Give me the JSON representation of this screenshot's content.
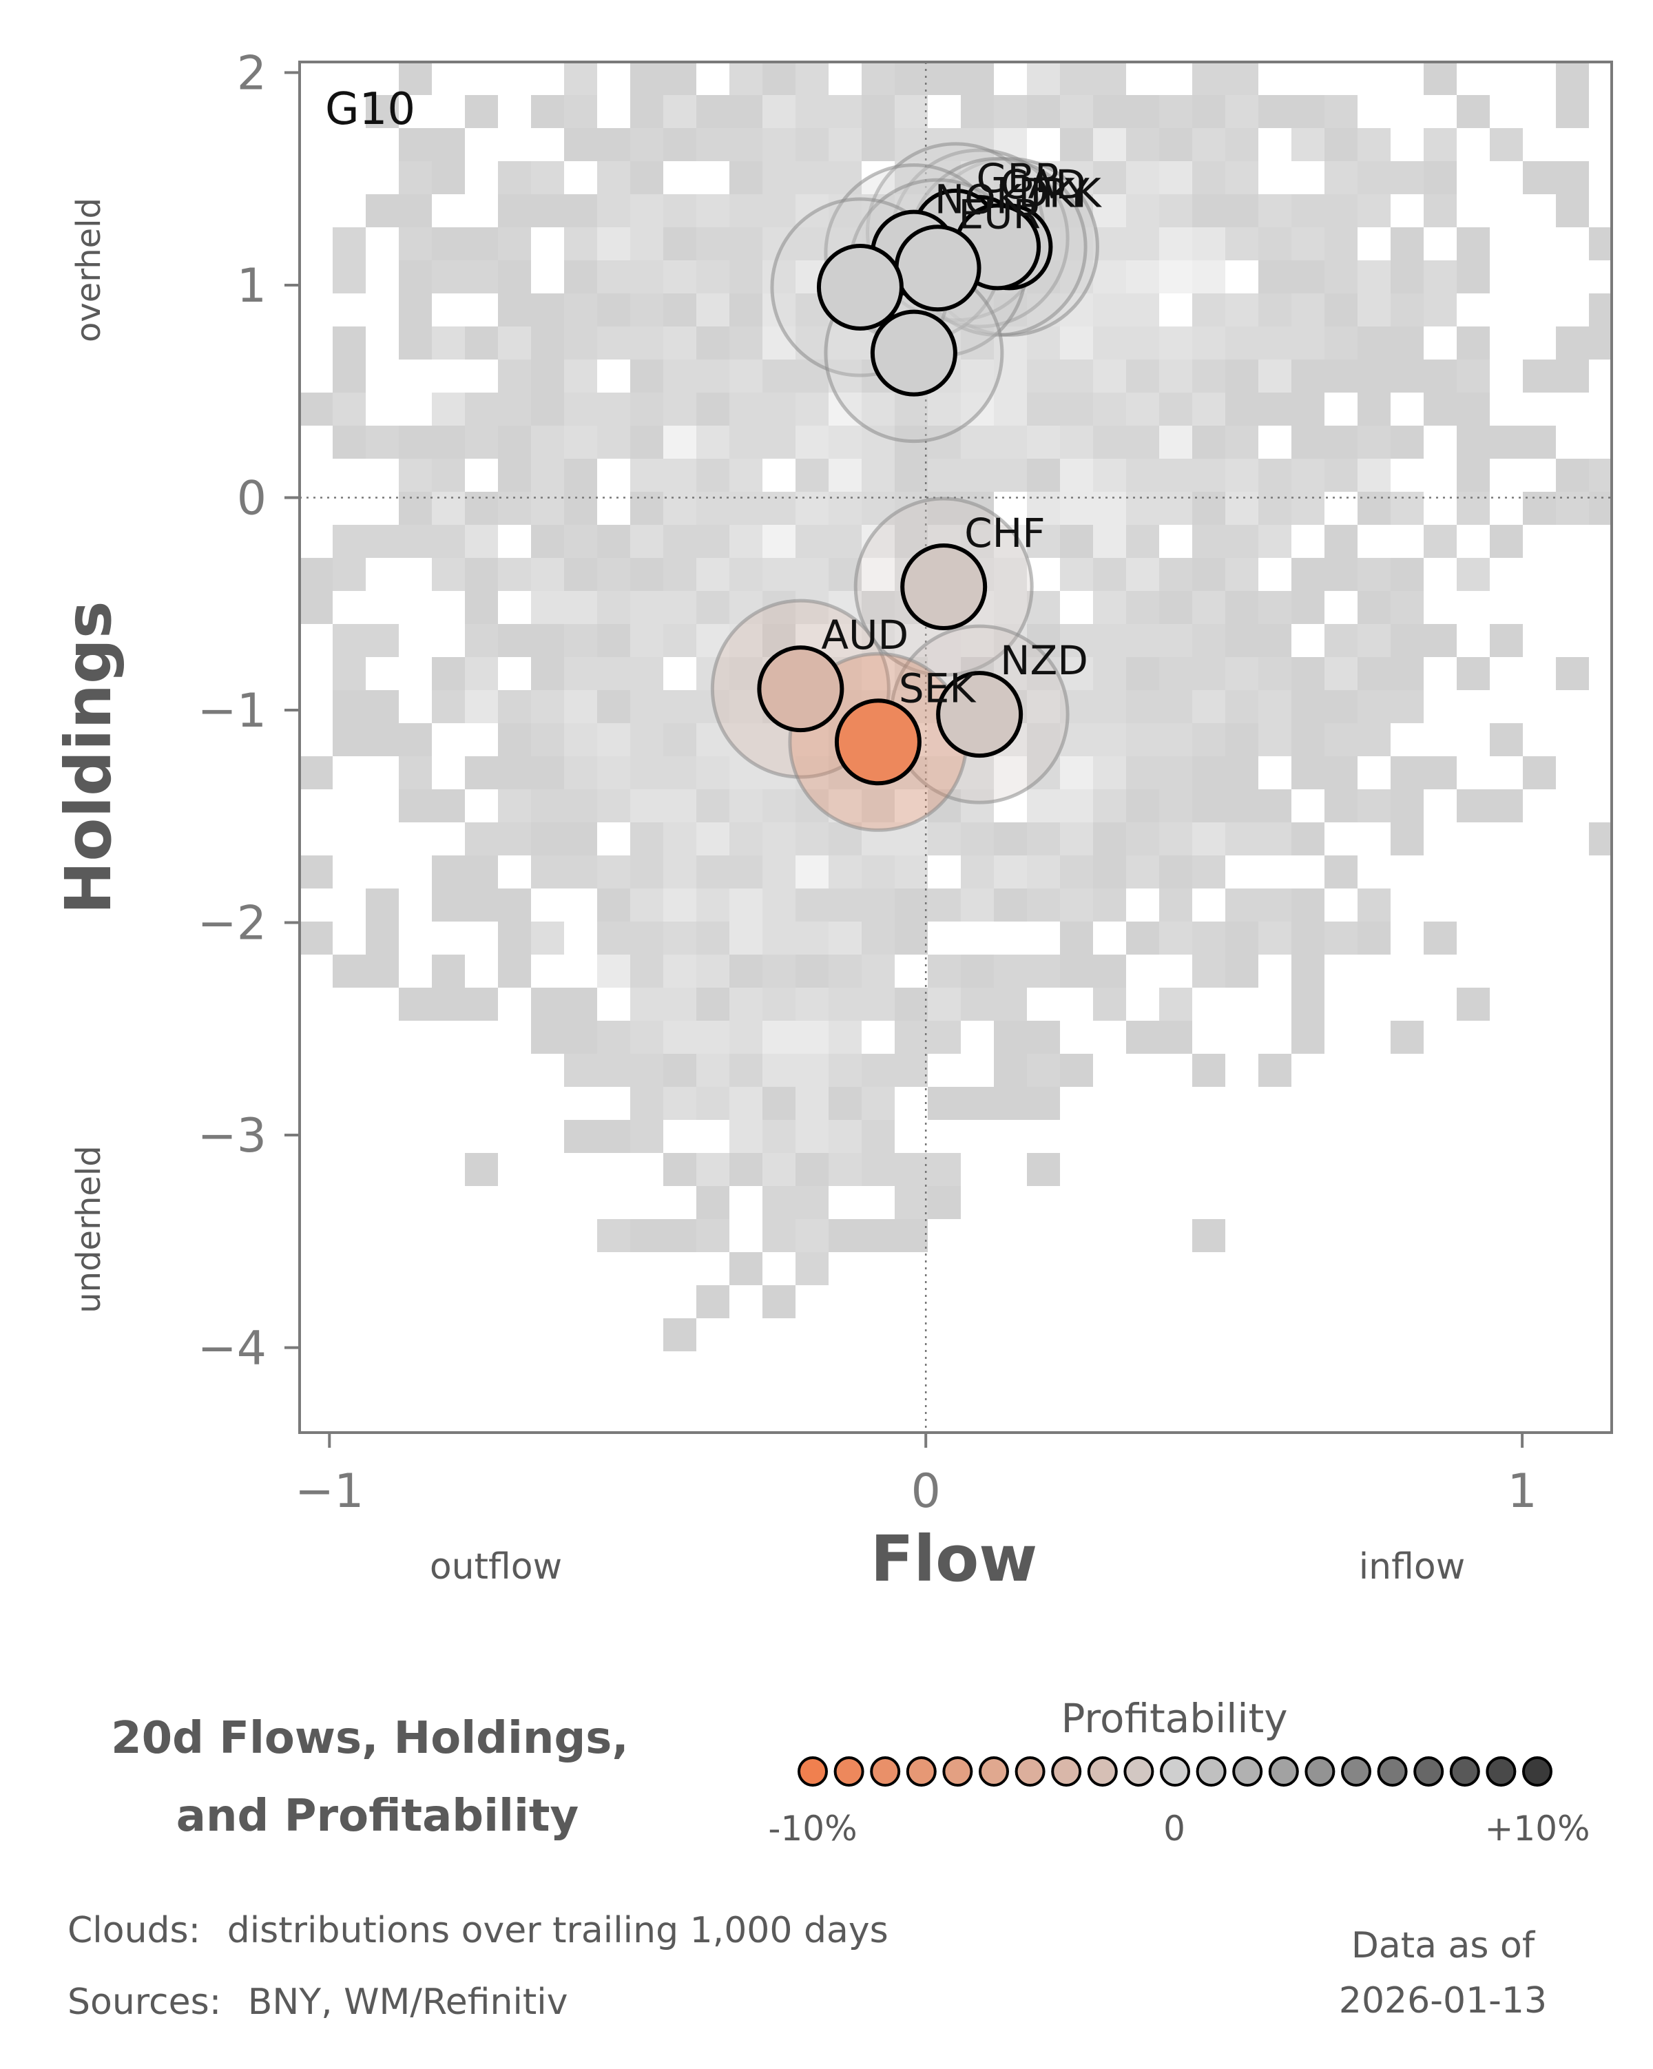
{
  "chart_data": {
    "type": "scatter",
    "panel_label": "G10",
    "xlabel": "Flow",
    "ylabel": "Holdings",
    "xlim": [
      -1.05,
      1.15
    ],
    "ylim": [
      -4.4,
      2.05
    ],
    "x_ticks": [
      -1,
      0,
      1
    ],
    "y_ticks": [
      2,
      1,
      0,
      -1,
      -2,
      -3,
      -4
    ],
    "x_tick_labels": [
      "−1",
      "0",
      "1"
    ],
    "y_tick_labels": [
      "2",
      "1",
      "0",
      "−1",
      "−2",
      "−3",
      "−4"
    ],
    "x_annotations": {
      "left": "outflow",
      "right": "inflow"
    },
    "y_annotations": {
      "top": "overheld",
      "bottom": "underheld"
    },
    "reference_lines": {
      "x": 0,
      "y": 0,
      "style": "dotted"
    },
    "grid": false,
    "series": [
      {
        "label": "JPY",
        "x": 0.14,
        "y": 1.18,
        "profitability": 0.0
      },
      {
        "label": "CAD",
        "x": 0.09,
        "y": 1.22,
        "profitability": 0.0
      },
      {
        "label": "GBP",
        "x": 0.05,
        "y": 1.25,
        "profitability": 0.0
      },
      {
        "label": "DKK",
        "x": 0.12,
        "y": 1.18,
        "profitability": 0.0
      },
      {
        "label": "NOK",
        "x": -0.02,
        "y": 1.15,
        "profitability": 0.0
      },
      {
        "label": "EUR",
        "x": 0.02,
        "y": 1.08,
        "profitability": 0.0
      },
      {
        "label": "",
        "x": -0.11,
        "y": 0.99,
        "profitability": 0.0
      },
      {
        "label": "",
        "x": -0.02,
        "y": 0.68,
        "profitability": 0.0
      },
      {
        "label": "CHF",
        "x": 0.03,
        "y": -0.42,
        "profitability": -1.0
      },
      {
        "label": "AUD",
        "x": -0.21,
        "y": -0.9,
        "profitability": -3.0
      },
      {
        "label": "NZD",
        "x": 0.09,
        "y": -1.02,
        "profitability": -1.0
      },
      {
        "label": "SEK",
        "x": -0.08,
        "y": -1.15,
        "profitability": -9.0
      }
    ],
    "cloud": {
      "description_label": "Clouds:",
      "description_text": "distributions over trailing 1,000 days"
    },
    "legend": {
      "title": "Profitability",
      "min_label": "-10%",
      "mid_label": "0",
      "max_label": "+10%",
      "min": -10,
      "max": 10,
      "steps": 21,
      "placement": "bottom-right"
    }
  },
  "title": "20d Flows, Holdings,\nand Profitability",
  "footer": {
    "clouds_label": "Clouds:",
    "clouds_text": "distributions over trailing 1,000 days",
    "sources_label": "Sources:",
    "sources_text": "BNY, WM/Refinitiv",
    "data_as_of_label": "Data as of",
    "data_as_of_date": "2026-01-13"
  },
  "colors": {
    "negative": "#f0804f",
    "neutral": "#cfcfcf",
    "positive": "#3a3a3a",
    "cloud": "#c8c8c8",
    "axis": "#7a7a7a",
    "text_dark": "#5a5a5a"
  }
}
